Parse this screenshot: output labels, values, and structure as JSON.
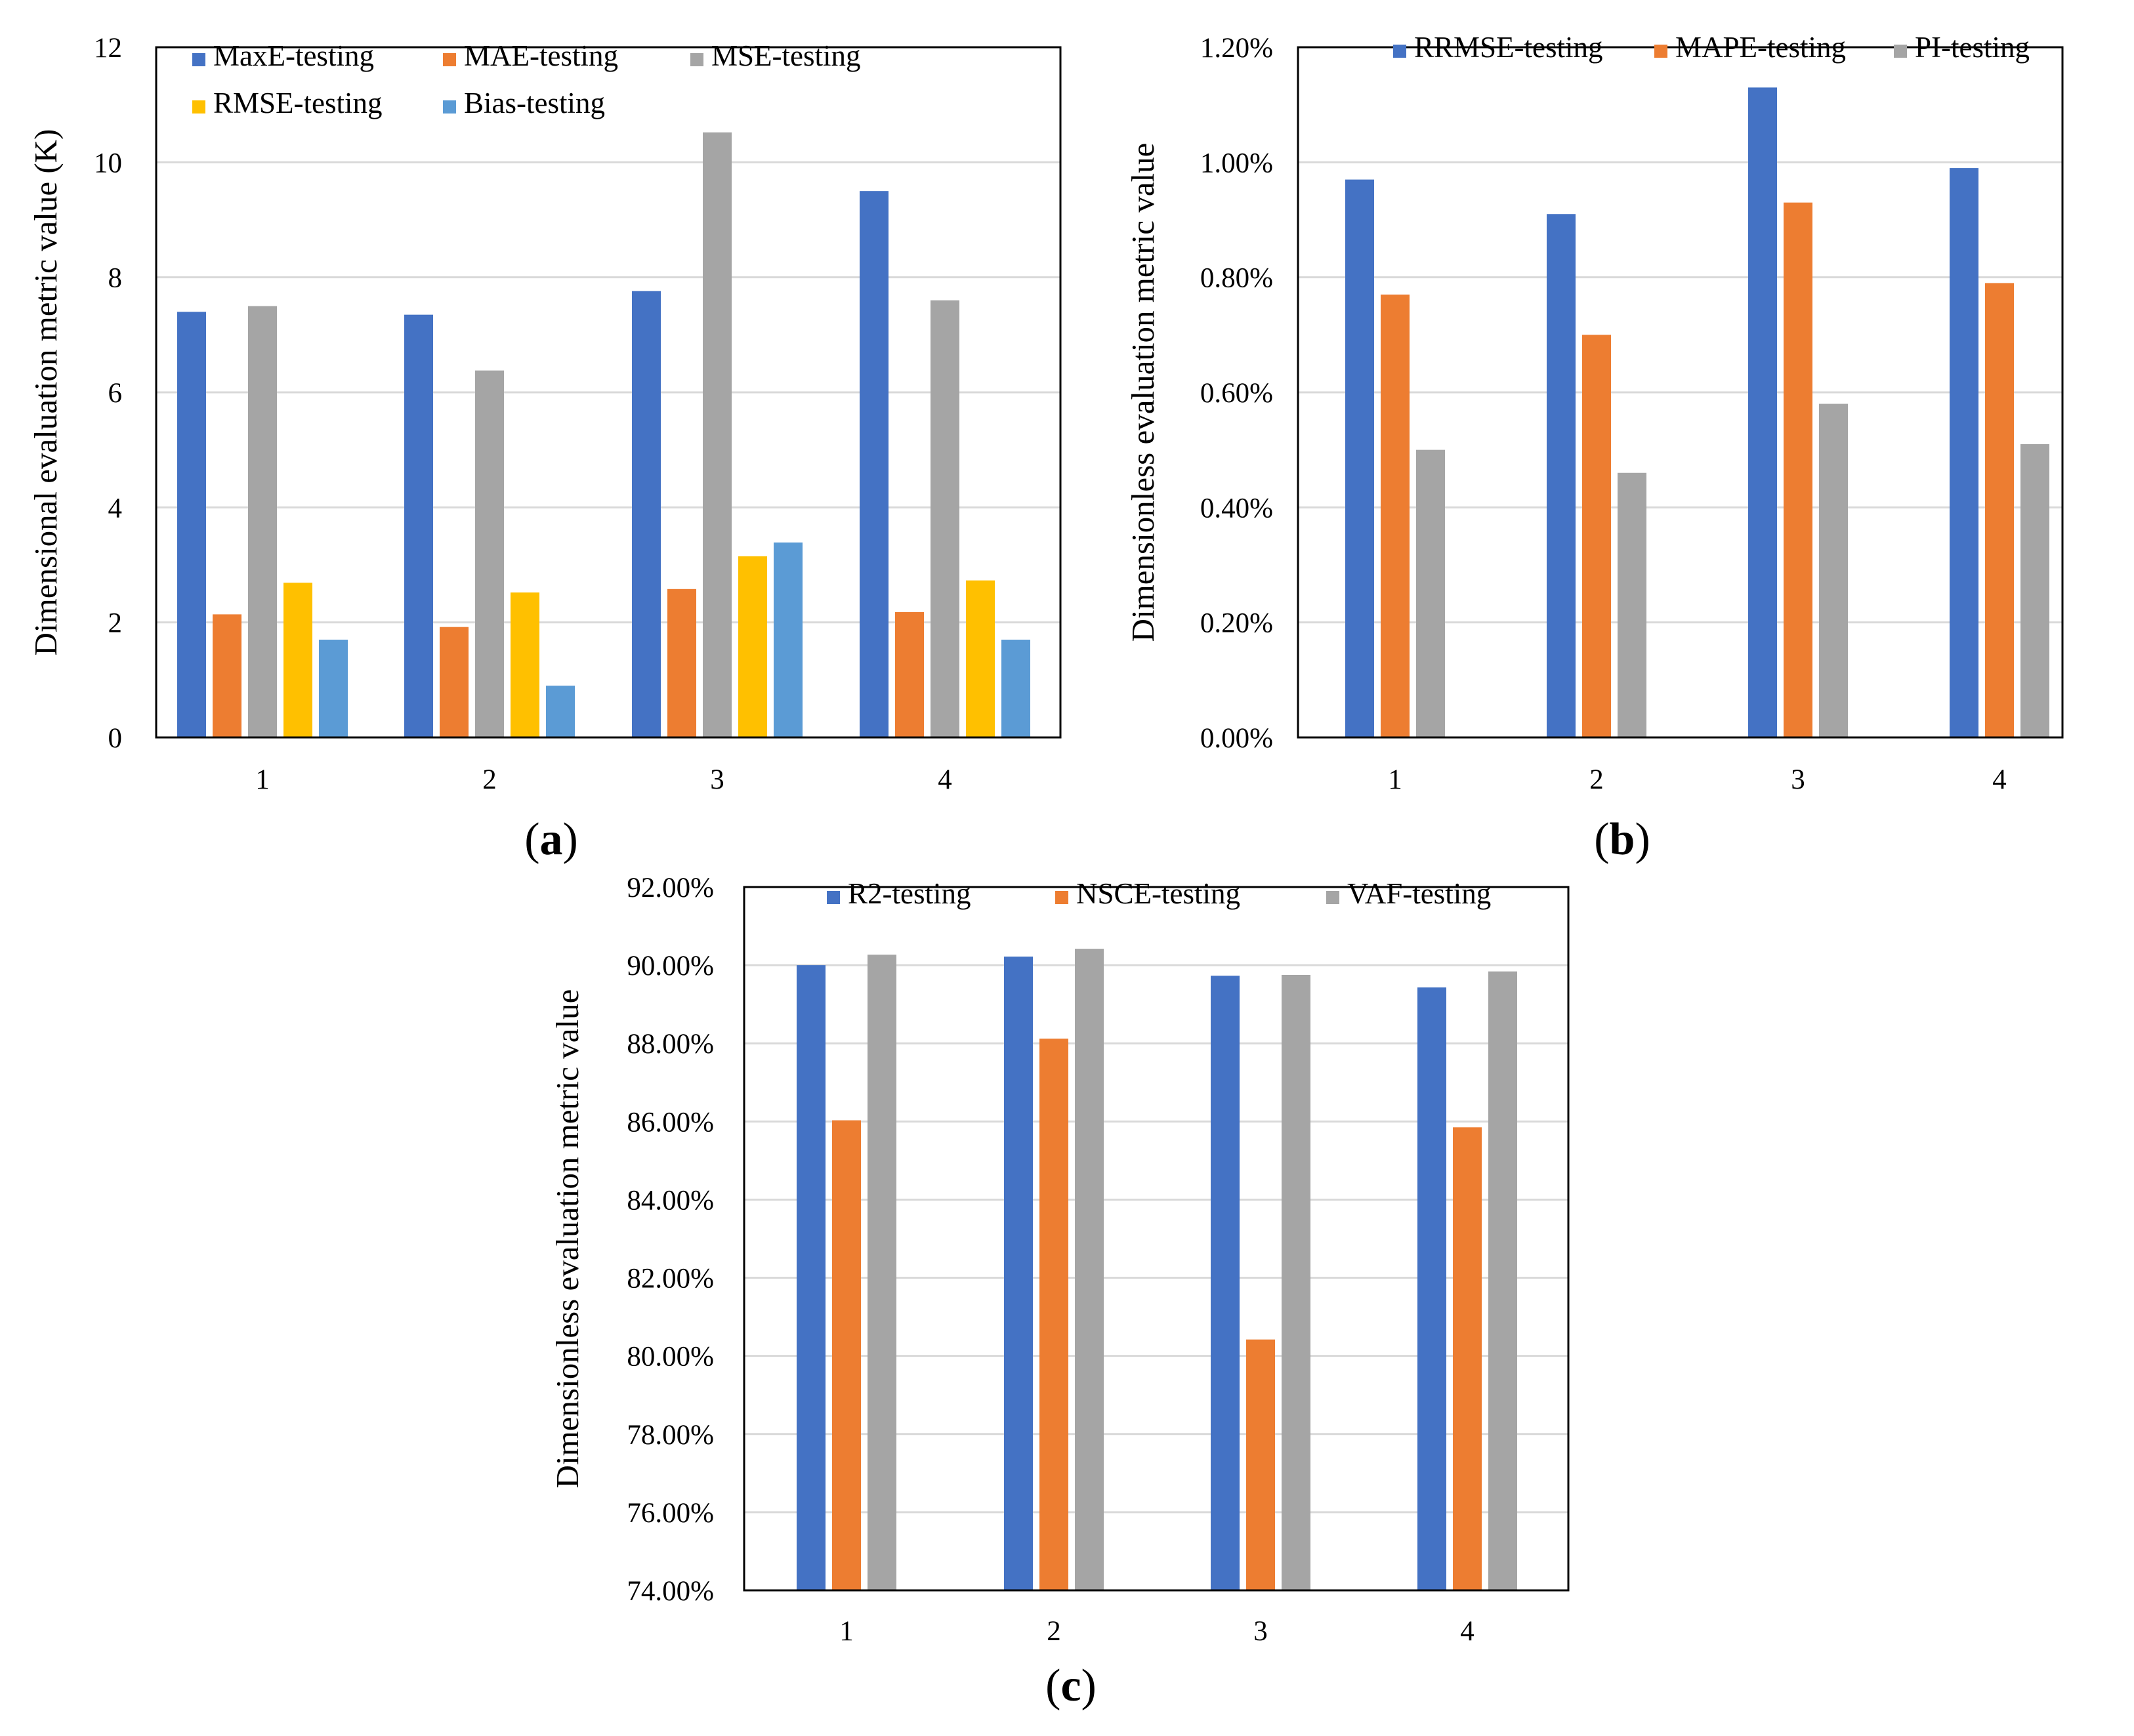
{
  "colors": {
    "blue": "#4472C4",
    "orange": "#ED7D31",
    "gray": "#A5A5A5",
    "yellow": "#FFC000",
    "lightblue": "#5B9BD5",
    "gridline": "#D9D9D9",
    "frame": "#000000"
  },
  "chart_data": [
    {
      "id": "a",
      "type": "bar",
      "panel_label": "(a)",
      "panel_letter": "a",
      "title": "",
      "xlabel": "",
      "ylabel": "Dimensional evaluation metric value (K)",
      "ylim": [
        0,
        12
      ],
      "ytick_values": [
        0,
        2,
        4,
        6,
        8,
        10,
        12
      ],
      "ytick_labels": [
        "0",
        "2",
        "4",
        "6",
        "8",
        "10",
        "12"
      ],
      "categories": [
        "1",
        "2",
        "3",
        "4"
      ],
      "grid": true,
      "legend": "top",
      "series": [
        {
          "name": "MaxE-testing",
          "color": "#4472C4",
          "values": [
            7.4,
            7.35,
            7.76,
            9.5
          ]
        },
        {
          "name": "MAE-testing",
          "color": "#ED7D31",
          "values": [
            2.14,
            1.92,
            2.58,
            2.18
          ]
        },
        {
          "name": "MSE-testing",
          "color": "#A5A5A5",
          "values": [
            7.5,
            6.38,
            10.52,
            7.6
          ]
        },
        {
          "name": "RMSE-testing",
          "color": "#FFC000",
          "values": [
            2.69,
            2.52,
            3.15,
            2.73
          ]
        },
        {
          "name": "Bias-testing",
          "color": "#5B9BD5",
          "values": [
            1.7,
            0.9,
            3.39,
            1.7
          ]
        }
      ]
    },
    {
      "id": "b",
      "type": "bar",
      "panel_label": "(b)",
      "panel_letter": "b",
      "title": "",
      "xlabel": "",
      "ylabel": "Dimensionless evaluation metric value",
      "ylim": [
        0,
        1.2
      ],
      "unit": "%",
      "ytick_values": [
        0,
        0.2,
        0.4,
        0.6,
        0.8,
        1.0,
        1.2
      ],
      "ytick_labels": [
        "0.00%",
        "0.20%",
        "0.40%",
        "0.60%",
        "0.80%",
        "1.00%",
        "1.20%"
      ],
      "categories": [
        "1",
        "2",
        "3",
        "4"
      ],
      "grid": true,
      "legend": "top",
      "series": [
        {
          "name": "RRMSE-testing",
          "color": "#4472C4",
          "values": [
            0.97,
            0.91,
            1.13,
            0.99
          ]
        },
        {
          "name": "MAPE-testing",
          "color": "#ED7D31",
          "values": [
            0.77,
            0.7,
            0.93,
            0.79
          ]
        },
        {
          "name": "PI-testing",
          "color": "#A5A5A5",
          "values": [
            0.5,
            0.46,
            0.58,
            0.51
          ]
        }
      ]
    },
    {
      "id": "c",
      "type": "bar",
      "panel_label": "(c)",
      "panel_letter": "c",
      "title": "",
      "xlabel": "",
      "ylabel": "Dimensionless evaluation metric value",
      "ylim": [
        74,
        92
      ],
      "unit": "%",
      "ytick_values": [
        74,
        76,
        78,
        80,
        82,
        84,
        86,
        88,
        90,
        92
      ],
      "ytick_labels": [
        "74.00%",
        "76.00%",
        "78.00%",
        "80.00%",
        "82.00%",
        "84.00%",
        "86.00%",
        "88.00%",
        "90.00%",
        "92.00%"
      ],
      "categories": [
        "1",
        "2",
        "3",
        "4"
      ],
      "grid": true,
      "legend": "top",
      "series": [
        {
          "name": "R2-testing",
          "color": "#4472C4",
          "values": [
            90.0,
            90.22,
            89.73,
            89.43
          ]
        },
        {
          "name": "NSCE-testing",
          "color": "#ED7D31",
          "values": [
            86.03,
            88.12,
            80.42,
            85.85
          ]
        },
        {
          "name": "VAF-testing",
          "color": "#A5A5A5",
          "values": [
            90.27,
            90.42,
            89.75,
            89.84
          ]
        }
      ]
    }
  ]
}
